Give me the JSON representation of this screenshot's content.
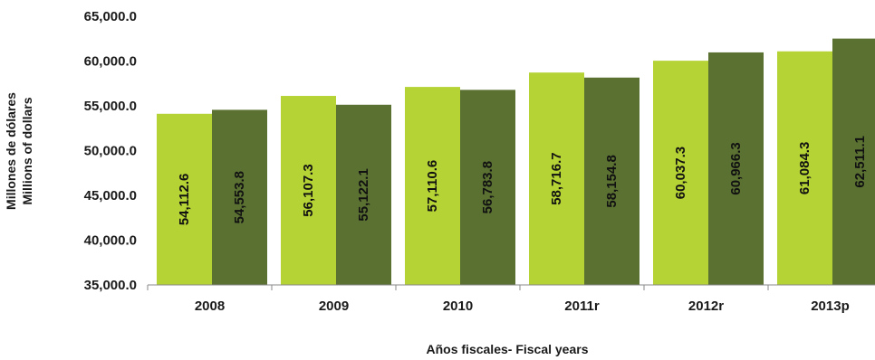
{
  "chart_data": {
    "type": "bar",
    "categories": [
      "2008",
      "2009",
      "2010",
      "2011r",
      "2012r",
      "2013p"
    ],
    "series": [
      {
        "values": [
          54112.6,
          56107.3,
          57110.6,
          58716.7,
          60037.3,
          61084.3
        ],
        "labels": [
          "54,112.6",
          "56,107.3",
          "57,110.6",
          "58,716.7",
          "60,037.3",
          "61,084.3"
        ]
      },
      {
        "values": [
          54553.8,
          55122.1,
          56783.8,
          58154.8,
          60966.3,
          62511.1
        ],
        "labels": [
          "54,553.8",
          "55,122.1",
          "56,783.8",
          "58,154.8",
          "60,966.3",
          "62,511.1"
        ]
      }
    ],
    "colors": [
      "#b5d334",
      "#5a7132"
    ],
    "ylim": [
      35000,
      65000
    ],
    "yticks": [
      35000,
      40000,
      45000,
      50000,
      55000,
      60000,
      65000
    ],
    "ytick_labels": [
      "35,000.0",
      "40,000.0",
      "45,000.0",
      "50,000.0",
      "55,000.0",
      "60,000.0",
      "65,000.0"
    ],
    "ylabel_line1": "Millones de dólares",
    "ylabel_line2": "Millions of dollars",
    "xlabel": "Años fiscales- Fiscal years",
    "grid": false
  }
}
